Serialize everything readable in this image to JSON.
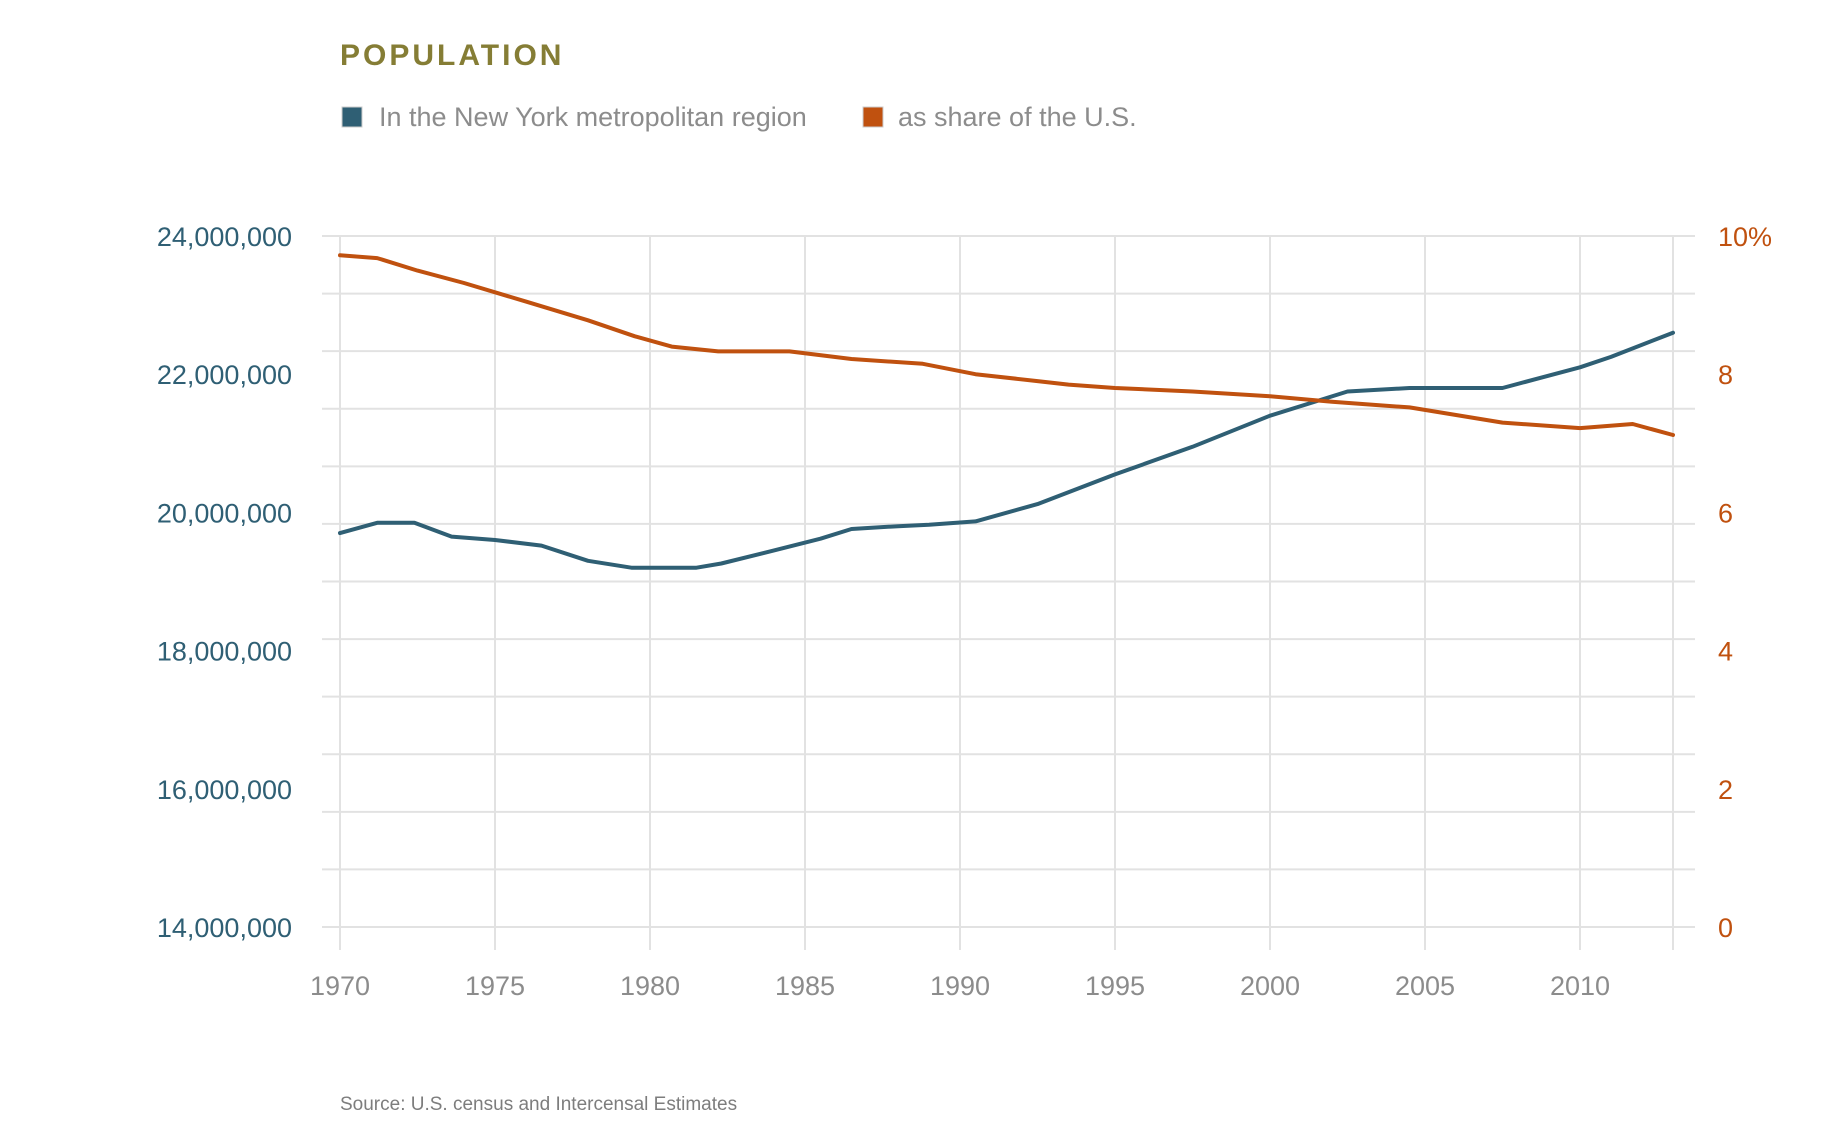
{
  "colors": {
    "title": "#857d35",
    "series_population": "#2f5f74",
    "series_share": "#c0510f",
    "grid": "#e2e2e2",
    "x_tick": "#8c8c8c",
    "legend_text": "#8c8c8c",
    "source_text": "#7d7d7d"
  },
  "source": "Source: U.S. census and Intercensal Estimates",
  "chart_data": {
    "type": "line",
    "title": "POPULATION",
    "legend_position": "top-left",
    "grid": true,
    "x_ticks": [
      "1970",
      "1975",
      "1980",
      "1985",
      "1990",
      "1995",
      "2000",
      "2005",
      "2010"
    ],
    "xlim": [
      1970,
      2013
    ],
    "left_axis": {
      "ylim": [
        14000000,
        24000000
      ],
      "tick_labels": [
        "24,000,000",
        "22,000,000",
        "20,000,000",
        "18,000,000",
        "16,000,000",
        "14,000,000"
      ]
    },
    "right_axis": {
      "ylim": [
        0,
        10
      ],
      "tick_labels": [
        "10%",
        "8",
        "6",
        "4",
        "2",
        "0"
      ]
    },
    "series": [
      {
        "name": "In the New York metropolitan region",
        "axis": "left",
        "color_key": "series_population",
        "x": [
          1970,
          1971.2,
          1972.4,
          1973.6,
          1975,
          1976.5,
          1978,
          1979.4,
          1980.6,
          1981.5,
          1982.3,
          1984,
          1985.5,
          1986.5,
          1988,
          1989,
          1990.5,
          1992.5,
          1995,
          1997.5,
          2000,
          2002.5,
          2004.5,
          2007.5,
          2010,
          2011,
          2013
        ],
        "y": [
          19700000,
          19850000,
          19850000,
          19650000,
          19600000,
          19520000,
          19300000,
          19200000,
          19200000,
          19200000,
          19260000,
          19450000,
          19620000,
          19760000,
          19800000,
          19820000,
          19870000,
          20120000,
          20550000,
          20950000,
          21400000,
          21750000,
          21800000,
          21800000,
          22100000,
          22250000,
          22600000
        ]
      },
      {
        "name": "as share of the U.S.",
        "axis": "right",
        "color_key": "series_share",
        "x": [
          1970,
          1971.2,
          1972.5,
          1974,
          1976,
          1978,
          1979.5,
          1980.7,
          1982.2,
          1984.5,
          1986.5,
          1988.8,
          1990.5,
          1992.5,
          1993.5,
          1995,
          1997.5,
          2000,
          2002,
          2004.5,
          2007.5,
          2010,
          2011.7,
          2013
        ],
        "y": [
          9.72,
          9.68,
          9.5,
          9.32,
          9.05,
          8.78,
          8.55,
          8.4,
          8.33,
          8.33,
          8.22,
          8.15,
          8.0,
          7.9,
          7.85,
          7.8,
          7.75,
          7.68,
          7.6,
          7.52,
          7.3,
          7.22,
          7.28,
          7.12
        ]
      }
    ]
  }
}
